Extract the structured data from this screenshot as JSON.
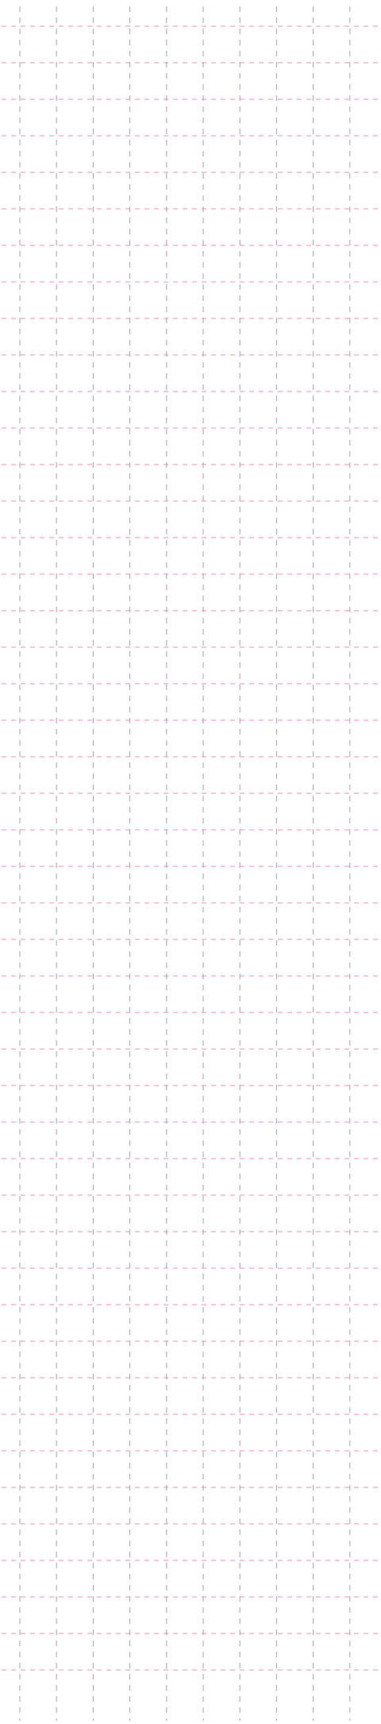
{
  "page": {
    "background_color": "#ffffff"
  },
  "grid": {
    "horizontal_line_color": "#e58ca3",
    "vertical_line_color": "#9c9ca6",
    "line_style": "dashed",
    "horizontal_line_count": 46,
    "vertical_line_count": 10
  }
}
